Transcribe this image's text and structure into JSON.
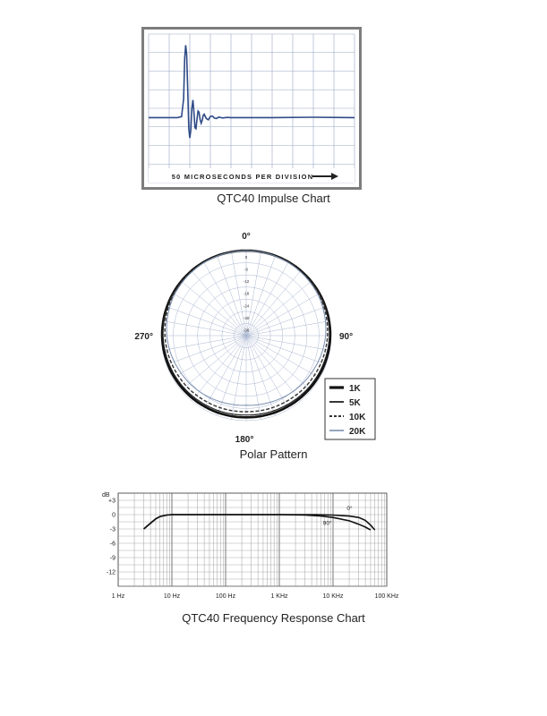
{
  "chart_data": [
    {
      "type": "line",
      "title": "QTC40 Impulse Chart",
      "xlabel": "50 MICROSECONDS PER DIVISION",
      "x_divisions": 10,
      "y_divisions": 8,
      "series": [
        {
          "x": [
            0,
            1.4,
            1.6,
            1.7,
            1.75,
            1.8,
            1.85,
            1.9,
            1.95,
            2.0,
            2.05,
            2.1,
            2.15,
            2.2,
            2.25,
            2.3,
            2.35,
            2.4,
            2.45,
            2.5,
            2.55,
            2.6,
            2.65,
            2.7,
            2.8,
            2.9,
            3.0,
            3.1,
            3.2,
            3.3,
            3.4,
            3.6,
            3.8,
            4.0,
            6,
            8,
            10
          ],
          "y": [
            0,
            0,
            0.05,
            1.0,
            3.2,
            3.9,
            3.4,
            1.5,
            -0.6,
            -1.1,
            -0.7,
            0.5,
            0.95,
            0.3,
            -0.55,
            -0.6,
            -0.1,
            0.35,
            0.3,
            -0.1,
            -0.3,
            -0.15,
            0.12,
            0.18,
            -0.05,
            -0.12,
            0.06,
            0.08,
            -0.03,
            -0.05,
            0.03,
            -0.02,
            0.01,
            0,
            0,
            0.02,
            0
          ]
        }
      ]
    },
    {
      "type": "polar",
      "title": "Polar Pattern",
      "angle_labels": {
        "top": "0°",
        "right": "90°",
        "bottom": "180°",
        "left": "270°"
      },
      "radial_labels": [
        "0",
        "-6",
        "-12",
        "-18",
        "-24",
        "-30",
        "-36"
      ],
      "radial_range_db": [
        -36,
        0
      ],
      "angles_deg": [
        0,
        30,
        60,
        90,
        120,
        150,
        165,
        180,
        195,
        210,
        240,
        270,
        300,
        330
      ],
      "series": [
        {
          "name": "1K",
          "style": "thick",
          "color": "#111111",
          "db": [
            0,
            0,
            -0.2,
            -0.4,
            -0.8,
            -1.2,
            -1.3,
            -1.4,
            -1.3,
            -1.2,
            -0.8,
            -0.4,
            -0.2,
            0
          ]
        },
        {
          "name": "5K",
          "style": "solid",
          "color": "#222222",
          "db": [
            0,
            -0.1,
            -0.3,
            -0.8,
            -1.4,
            -2.0,
            -2.2,
            -2.4,
            -2.2,
            -2.0,
            -1.4,
            -0.8,
            -0.3,
            -0.1
          ]
        },
        {
          "name": "10K",
          "style": "dashed",
          "color": "#333333",
          "db": [
            0,
            -0.2,
            -0.6,
            -1.6,
            -2.6,
            -3.4,
            -3.6,
            -3.8,
            -3.6,
            -3.4,
            -2.6,
            -1.6,
            -0.6,
            -0.2
          ]
        },
        {
          "name": "20K",
          "style": "thin",
          "color": "#7a8fb0",
          "db": [
            0,
            -0.3,
            -1.0,
            -2.4,
            -4.2,
            -5.6,
            -6.2,
            -6.5,
            -6.2,
            -5.6,
            -4.2,
            -2.4,
            -1.0,
            -0.3
          ]
        }
      ]
    },
    {
      "type": "line",
      "title": "QTC40 Frequency Response Chart",
      "ylabel": "dB",
      "x_scale": "log",
      "xlim": [
        1,
        100000
      ],
      "ylim": [
        -15,
        4.5
      ],
      "x_tick_values": [
        1,
        10,
        100,
        1000,
        10000,
        100000
      ],
      "x_tick_labels": [
        "1 Hz",
        "10 Hz",
        "100 Hz",
        "1 KHz",
        "10 KHz",
        "100 KHz"
      ],
      "y_tick_values": [
        3,
        0,
        -3,
        -6,
        -9,
        -12
      ],
      "y_tick_labels": [
        "+3",
        "0",
        "-3",
        "-6",
        "-9",
        "-12"
      ],
      "series": [
        {
          "name": "0°",
          "x": [
            3,
            4,
            5,
            6,
            8,
            10,
            20,
            100,
            1000,
            5000,
            10000,
            20000,
            30000,
            40000,
            50000,
            60000
          ],
          "y": [
            -3,
            -1.8,
            -0.9,
            -0.4,
            -0.1,
            0,
            0,
            0,
            0,
            0,
            -0.1,
            -0.3,
            -0.6,
            -1.2,
            -2.2,
            -3.2
          ]
        },
        {
          "name": "90°",
          "x": [
            3,
            4,
            5,
            6,
            8,
            10,
            20,
            100,
            1000,
            3000,
            6000,
            10000,
            20000,
            30000,
            40000,
            50000
          ],
          "y": [
            -3,
            -1.8,
            -0.9,
            -0.4,
            -0.1,
            0,
            0,
            0,
            0,
            -0.1,
            -0.3,
            -0.6,
            -1.3,
            -2.0,
            -2.6,
            -3.2
          ]
        }
      ]
    }
  ]
}
